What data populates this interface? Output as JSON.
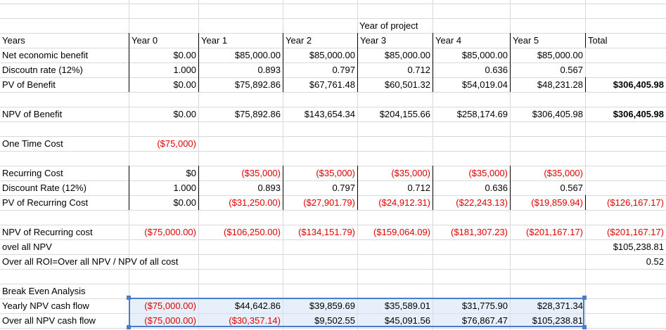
{
  "header": {
    "year_of_project": "Year of project"
  },
  "columns": [
    "Year 0",
    "Year 1",
    "Year 2",
    "Year 3",
    "Year 4",
    "Year 5",
    "Total"
  ],
  "row_labels": {
    "years": "Years",
    "net_benefit": "Net economic benefit",
    "discount_rate": "Discoutn rate (12%)",
    "pv_benefit": "PV of Benefit",
    "npv_benefit": "NPV of Benefit",
    "one_time_cost": "One Time Cost",
    "recurring_cost": "Recurring Cost",
    "discount_rate2": "Discount Rate (12%)",
    "pv_recurring": "PV of Recurring Cost",
    "npv_recurring": "NPV of Recurring cost",
    "overall_npv": "ovel all NPV",
    "overall_roi": "Over all ROI=Over all NPV / NPV of all cost",
    "break_even": "Break Even Analysis",
    "yearly_npv": "Yearly NPV cash flow",
    "overall_npv_cf": "Over all NPV cash flow"
  },
  "rows": {
    "net_benefit": [
      "$0.00",
      "$85,000.00",
      "$85,000.00",
      "$85,000.00",
      "$85,000.00",
      "$85,000.00"
    ],
    "discount_rate": [
      "1.000",
      "0.893",
      "0.797",
      "0.712",
      "0.636",
      "0.567"
    ],
    "pv_benefit": [
      "$0.00",
      "$75,892.86",
      "$67,761.48",
      "$60,501.32",
      "$54,019.04",
      "$48,231.28",
      "$306,405.98"
    ],
    "npv_benefit": [
      "$0.00",
      "$75,892.86",
      "$143,654.34",
      "$204,155.66",
      "$258,174.69",
      "$306,405.98",
      "$306,405.98"
    ],
    "one_time_cost": [
      "($75,000)"
    ],
    "recurring_cost": [
      "$0",
      "($35,000)",
      "($35,000)",
      "($35,000)",
      "($35,000)",
      "($35,000)"
    ],
    "discount_rate2": [
      "1.000",
      "0.893",
      "0.797",
      "0.712",
      "0.636",
      "0.567"
    ],
    "pv_recurring": [
      "$0.00",
      "($31,250.00)",
      "($27,901.79)",
      "($24,912.31)",
      "($22,243.13)",
      "($19,859.94)",
      "($126,167.17)"
    ],
    "npv_recurring": [
      "($75,000.00)",
      "($106,250.00)",
      "($134,151.79)",
      "($159,064.09)",
      "($181,307.23)",
      "($201,167.17)",
      "($201,167.17)"
    ],
    "overall_npv": "$105,238.81",
    "overall_roi": "0.52",
    "yearly_npv": [
      "($75,000.00)",
      "$44,642.86",
      "$39,859.69",
      "$35,589.01",
      "$31,775.90",
      "$28,371.34"
    ],
    "overall_npv_cf": [
      "($75,000.00)",
      "($30,357.14)",
      "$9,502.55",
      "$45,091.56",
      "$76,867.47",
      "$105,238.81"
    ]
  }
}
